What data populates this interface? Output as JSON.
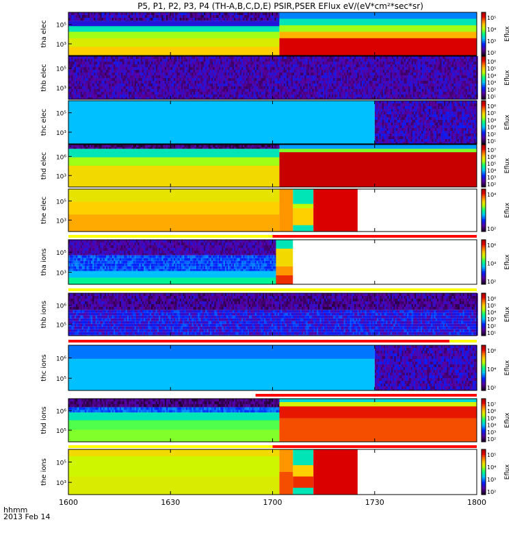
{
  "title": "P5, P1, P2, P3, P4 (TH-A,B,C,D,E) PSIR,PSER EFlux eV/(eV*cm²*sec*sr)",
  "x_axis": {
    "label_line1": "hhmm",
    "label_line2": "2013 Feb 14",
    "ticks": [
      "1600",
      "1630",
      "1700",
      "1730",
      "1800"
    ]
  },
  "chart_data": [
    {
      "type": "heatmap",
      "ylabel": [
        "thb",
        "elec"
      ],
      "cbar_label": "Eflux",
      "y_ticks": [
        "10⁵",
        "10³"
      ],
      "cbar_ticks": [
        "10⁶",
        "10⁵",
        "10⁴",
        "10³",
        "10²",
        "10¹"
      ],
      "segments": [
        {
          "from": "1600",
          "to": "1800",
          "style": "noise",
          "lo": 0.05,
          "hi": 0.22
        }
      ],
      "flag_bar": null
    },
    {
      "type": "heatmap",
      "ylabel": [
        "thd",
        "ions"
      ],
      "cbar_label": "Eflux",
      "y_ticks": [
        "10⁶",
        "10⁵"
      ],
      "cbar_ticks": [
        "10⁷",
        "10⁶",
        "10⁵",
        "10⁴",
        "10³",
        "10²"
      ],
      "segments": [
        {
          "from": "1600",
          "to": "1702",
          "bands": [
            {
              "upto": 0.2,
              "style": "noise",
              "lo": 0.0,
              "hi": 0.15
            },
            {
              "upto": 0.32,
              "style": "noise",
              "lo": 0.25,
              "hi": 0.35
            },
            {
              "upto": 0.5,
              "level": 0.45
            },
            {
              "upto": 0.72,
              "level": 0.55
            },
            {
              "upto": 1.0,
              "level": 0.58
            }
          ]
        },
        {
          "from": "1702",
          "to": "1800",
          "cells": [
            {
              "from": "1702",
              "to": "1712",
              "bands": [
                {
                  "upto": 0.08,
                  "level": 0.4
                },
                {
                  "upto": 0.18,
                  "level": 0.62
                },
                {
                  "upto": 1.0,
                  "level": 0.98
                }
              ]
            },
            {
              "from": "1712",
              "to": "1733",
              "bands": [
                {
                  "upto": 0.08,
                  "level": 0.42
                },
                {
                  "upto": 0.18,
                  "level": 0.65
                },
                {
                  "upto": 1.0,
                  "level": 0.95
                }
              ]
            },
            {
              "from": "1733",
              "to": "1800",
              "bands": [
                {
                  "upto": 0.08,
                  "level": 0.38
                },
                {
                  "upto": 0.2,
                  "level": 0.55
                },
                {
                  "upto": 0.5,
                  "level": 0.75
                },
                {
                  "upto": 1.0,
                  "level": 0.8
                }
              ]
            }
          ]
        }
      ],
      "flag_bar": {
        "segments": [
          {
            "from": "1600",
            "to": "1700",
            "color": "#ffff00"
          },
          {
            "from": "1700",
            "to": "1800",
            "color": "#ff0000"
          }
        ]
      }
    }
  ],
  "panels": [
    {
      "sc": "tha",
      "species": "elec",
      "y_ticks": [
        "10⁵",
        "10³"
      ],
      "cbar_ticks": [
        "10⁵",
        "10⁴",
        "10³",
        "10²"
      ],
      "cbar_label": "Eflux",
      "segments": [
        {
          "from": "1600",
          "to": "1702",
          "bands": [
            {
              "upto": 0.2,
              "style": "noise",
              "lo": 0.02,
              "hi": 0.25
            },
            {
              "upto": 0.32,
              "level": 0.2
            },
            {
              "upto": 0.45,
              "level": 0.45
            },
            {
              "upto": 0.6,
              "level": 0.6
            },
            {
              "upto": 0.8,
              "level": 0.66
            },
            {
              "upto": 1.0,
              "level": 0.72
            }
          ]
        },
        {
          "from": "1702",
          "to": "1800",
          "bands": [
            {
              "upto": 0.15,
              "level": 0.33
            },
            {
              "upto": 0.3,
              "level": 0.45
            },
            {
              "upto": 0.45,
              "level": 0.6
            },
            {
              "upto": 0.6,
              "level": 0.75
            },
            {
              "upto": 1.0,
              "level": 0.93
            }
          ]
        }
      ],
      "flag_bar": null
    },
    {
      "sc": "thb",
      "species": "elec",
      "y_ticks": [
        "10⁵",
        "10³"
      ],
      "cbar_ticks": [
        "10⁶",
        "10⁵",
        "10⁴",
        "10³",
        "10²",
        "10¹"
      ],
      "cbar_label": "Eflux",
      "segments": [
        {
          "from": "1600",
          "to": "1800",
          "style": "noise",
          "lo": 0.05,
          "hi": 0.22
        }
      ],
      "flag_bar": null
    },
    {
      "sc": "thc",
      "species": "elec",
      "y_ticks": [
        "10⁵",
        "10³"
      ],
      "cbar_ticks": [
        "10⁶",
        "10⁵",
        "10⁴",
        "10³",
        "10²",
        "10¹"
      ],
      "cbar_label": "Eflux",
      "segments": [
        {
          "from": "1600",
          "to": "1730",
          "bands": [
            {
              "upto": 1.0,
              "level": 0.38
            }
          ]
        },
        {
          "from": "1730",
          "to": "1800",
          "style": "noise",
          "lo": 0.05,
          "hi": 0.25
        }
      ],
      "flag_bar": null
    },
    {
      "sc": "thd",
      "species": "elec",
      "y_ticks": [
        "10⁶",
        "10³"
      ],
      "cbar_ticks": [
        "10⁷",
        "10⁶",
        "10⁵",
        "10⁴",
        "10³",
        "10²"
      ],
      "cbar_label": "Eflux",
      "segments": [
        {
          "from": "1600",
          "to": "1702",
          "bands": [
            {
              "upto": 0.1,
              "style": "noise",
              "lo": 0.0,
              "hi": 0.15
            },
            {
              "upto": 0.3,
              "level": 0.45
            },
            {
              "upto": 0.5,
              "level": 0.6
            },
            {
              "upto": 1.0,
              "level": 0.7
            }
          ]
        },
        {
          "from": "1702",
          "to": "1800",
          "bands": [
            {
              "upto": 0.1,
              "level": 0.35
            },
            {
              "upto": 0.18,
              "level": 0.58
            },
            {
              "upto": 1.0,
              "level": 0.96
            }
          ]
        }
      ],
      "flag_bar": null
    },
    {
      "sc": "the",
      "species": "elec",
      "y_ticks": [
        "10⁵",
        "10³"
      ],
      "cbar_ticks": [
        "10⁴",
        "10²"
      ],
      "cbar_label": "Eflux",
      "segments": [
        {
          "from": "1600",
          "to": "1702",
          "bands": [
            {
              "upto": 0.3,
              "level": 0.68
            },
            {
              "upto": 0.6,
              "level": 0.72
            },
            {
              "upto": 1.0,
              "level": 0.76
            }
          ]
        },
        {
          "from": "1702",
          "to": "1706",
          "bands": [
            {
              "upto": 1.0,
              "level": 0.78
            }
          ]
        },
        {
          "from": "1706",
          "to": "1712",
          "bands": [
            {
              "upto": 0.35,
              "level": 0.45
            },
            {
              "upto": 0.45,
              "level": 0.62
            },
            {
              "upto": 0.85,
              "level": 0.72
            },
            {
              "upto": 1.0,
              "level": 0.45
            }
          ]
        },
        {
          "from": "1712",
          "to": "1725",
          "bands": [
            {
              "upto": 1.0,
              "level": 0.93
            }
          ]
        },
        {
          "from": "1725",
          "to": "1800",
          "style": "blank"
        }
      ],
      "flag_bar": {
        "segments": [
          {
            "from": "1600",
            "to": "1700",
            "color": "#ffff00"
          },
          {
            "from": "1700",
            "to": "1800",
            "color": "#ff0000"
          }
        ]
      }
    },
    {
      "sc": "tha",
      "species": "ions",
      "y_ticks": [
        "10⁵",
        "10³"
      ],
      "cbar_ticks": [
        "10⁶",
        "10⁴",
        "10²"
      ],
      "cbar_label": "Eflux",
      "segments": [
        {
          "from": "1600",
          "to": "1701",
          "bands": [
            {
              "upto": 0.35,
              "style": "noise",
              "lo": 0.05,
              "hi": 0.2
            },
            {
              "upto": 0.7,
              "style": "noise",
              "lo": 0.22,
              "hi": 0.34
            },
            {
              "upto": 0.85,
              "level": 0.38
            },
            {
              "upto": 1.0,
              "level": 0.48
            }
          ]
        },
        {
          "from": "1701",
          "to": "1706",
          "bands": [
            {
              "upto": 0.2,
              "level": 0.45
            },
            {
              "upto": 0.6,
              "level": 0.7
            },
            {
              "upto": 0.8,
              "level": 0.78
            },
            {
              "upto": 1.0,
              "level": 0.88
            }
          ]
        },
        {
          "from": "1706",
          "to": "1800",
          "style": "blank"
        }
      ],
      "flag_bar": {
        "segments": [
          {
            "from": "1600",
            "to": "1800",
            "color": "#ffff00"
          }
        ]
      }
    },
    {
      "sc": "thb",
      "species": "ions",
      "y_ticks": [
        "10⁶",
        "10⁵"
      ],
      "cbar_ticks": [
        "10⁶",
        "10⁵",
        "10⁴",
        "10³",
        "10²",
        "10¹"
      ],
      "cbar_label": "Eflux",
      "segments": [
        {
          "from": "1600",
          "to": "1800",
          "bands": [
            {
              "upto": 0.4,
              "style": "noise",
              "lo": 0.02,
              "hi": 0.2
            },
            {
              "upto": 1.0,
              "style": "noise",
              "lo": 0.12,
              "hi": 0.3
            }
          ]
        }
      ],
      "flag_bar": {
        "segments": [
          {
            "from": "1600",
            "to": "1752",
            "color": "#ff0000"
          },
          {
            "from": "1752",
            "to": "1800",
            "color": "#ffff00"
          }
        ]
      }
    },
    {
      "sc": "thc",
      "species": "ions",
      "y_ticks": [
        "10⁶",
        "10⁵"
      ],
      "cbar_ticks": [
        "10⁶",
        "10⁴",
        "10²"
      ],
      "cbar_label": "Eflux",
      "segments": [
        {
          "from": "1600",
          "to": "1730",
          "bands": [
            {
              "upto": 0.3,
              "level": 0.32
            },
            {
              "upto": 1.0,
              "level": 0.38
            }
          ]
        },
        {
          "from": "1730",
          "to": "1800",
          "style": "noise",
          "lo": 0.05,
          "hi": 0.25
        }
      ],
      "flag_bar": {
        "segments": [
          {
            "from": "1655",
            "to": "1800",
            "color": "#ff0000"
          }
        ]
      }
    },
    {
      "sc": "thd",
      "species": "ions",
      "y_ticks": [
        "10⁶",
        "10⁵"
      ],
      "cbar_ticks": [
        "10⁷",
        "10⁶",
        "10⁵",
        "10⁴",
        "10³",
        "10²"
      ],
      "cbar_label": "Eflux",
      "segments": [
        {
          "from": "1600",
          "to": "1702",
          "bands": [
            {
              "upto": 0.2,
              "style": "noise",
              "lo": 0.0,
              "hi": 0.15
            },
            {
              "upto": 0.32,
              "style": "noise",
              "lo": 0.25,
              "hi": 0.35
            },
            {
              "upto": 0.5,
              "level": 0.45
            },
            {
              "upto": 0.72,
              "level": 0.55
            },
            {
              "upto": 1.0,
              "level": 0.58
            }
          ]
        },
        {
          "from": "1702",
          "to": "1800",
          "bands": [
            {
              "upto": 0.08,
              "level": 0.42
            },
            {
              "upto": 0.18,
              "level": 0.65
            },
            {
              "upto": 0.45,
              "level": 0.9
            },
            {
              "upto": 1.0,
              "level": 0.85
            }
          ]
        }
      ],
      "flag_bar": {
        "segments": [
          {
            "from": "1600",
            "to": "1700",
            "color": "#ffff00"
          },
          {
            "from": "1700",
            "to": "1800",
            "color": "#ff0000"
          }
        ]
      }
    },
    {
      "sc": "the",
      "species": "ions",
      "y_ticks": [
        "10⁵",
        "10³"
      ],
      "cbar_ticks": [
        "10⁵",
        "10⁴",
        "10³",
        "10²"
      ],
      "cbar_label": "Eflux",
      "segments": [
        {
          "from": "1600",
          "to": "1702",
          "bands": [
            {
              "upto": 0.15,
              "level": 0.7
            },
            {
              "upto": 0.6,
              "level": 0.64
            },
            {
              "upto": 1.0,
              "level": 0.66
            }
          ]
        },
        {
          "from": "1702",
          "to": "1706",
          "bands": [
            {
              "upto": 0.5,
              "level": 0.78
            },
            {
              "upto": 1.0,
              "level": 0.85
            }
          ]
        },
        {
          "from": "1706",
          "to": "1712",
          "bands": [
            {
              "upto": 0.35,
              "level": 0.45
            },
            {
              "upto": 0.6,
              "level": 0.72
            },
            {
              "upto": 0.85,
              "level": 0.88
            },
            {
              "upto": 1.0,
              "level": 0.45
            }
          ]
        },
        {
          "from": "1712",
          "to": "1725",
          "bands": [
            {
              "upto": 1.0,
              "level": 0.93
            }
          ]
        },
        {
          "from": "1725",
          "to": "1800",
          "style": "blank"
        }
      ],
      "flag_bar": null
    }
  ]
}
